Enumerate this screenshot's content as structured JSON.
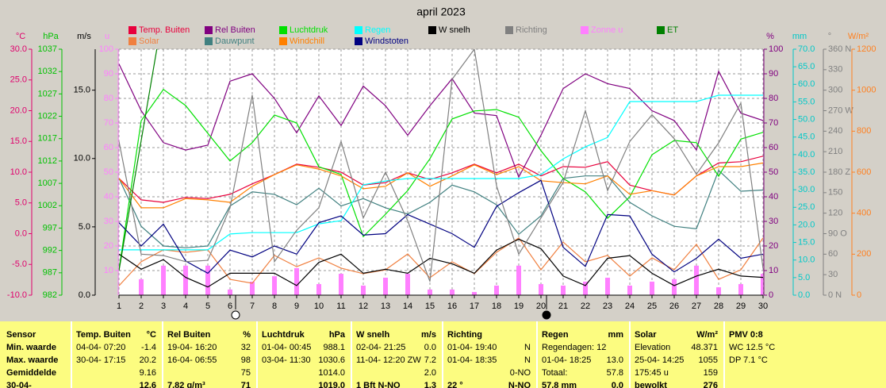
{
  "chart_data": {
    "type": "line",
    "title": "april 2023",
    "x": [
      1,
      2,
      3,
      4,
      5,
      6,
      7,
      8,
      9,
      10,
      11,
      12,
      13,
      14,
      15,
      16,
      17,
      18,
      19,
      20,
      21,
      22,
      23,
      24,
      25,
      26,
      27,
      28,
      29,
      30
    ],
    "xlim": [
      1,
      30
    ],
    "xticks": [
      1,
      2,
      3,
      4,
      5,
      6,
      7,
      8,
      9,
      10,
      11,
      12,
      13,
      14,
      15,
      16,
      17,
      18,
      19,
      20,
      21,
      22,
      23,
      24,
      25,
      26,
      27,
      28,
      29,
      30
    ],
    "xgrid": true,
    "axes": [
      {
        "unit": "°C",
        "color": "#e0006c",
        "lim": [
          -10,
          30
        ],
        "ticks": [
          {
            "value": -10,
            "label": "-10.0"
          },
          {
            "value": -5,
            "label": "-5.0"
          },
          {
            "value": 0,
            "label": "0.0"
          },
          {
            "value": 5,
            "label": "5.0"
          },
          {
            "value": 10,
            "label": "10.0"
          },
          {
            "value": 15,
            "label": "15.0"
          },
          {
            "value": 20,
            "label": "20.0"
          },
          {
            "value": 25,
            "label": "25.0"
          },
          {
            "value": 30,
            "label": "30.0"
          }
        ]
      },
      {
        "unit": "hPa",
        "color": "#00c000",
        "lim": [
          982,
          1037
        ],
        "ticks": [
          982,
          987,
          992,
          997,
          1002,
          1007,
          1012,
          1017,
          1022,
          1027,
          1032,
          1037
        ]
      },
      {
        "unit": "m/s",
        "color": "#000000",
        "lim": [
          0,
          18
        ],
        "ticks": [
          {
            "value": 0,
            "label": "0.0"
          },
          {
            "value": 5,
            "label": "5.0"
          },
          {
            "value": 10,
            "label": "10.0"
          },
          {
            "value": 15,
            "label": "15.0"
          }
        ]
      },
      {
        "unit": "u",
        "color": "#ff80ff",
        "lim": [
          0,
          100
        ],
        "ticks": [
          10,
          20,
          30,
          40,
          50,
          60,
          70,
          80,
          90,
          100
        ]
      },
      {
        "unit": "%",
        "color": "#800080",
        "lim": [
          0,
          100
        ],
        "ticks": [
          0,
          10,
          20,
          30,
          40,
          50,
          60,
          70,
          80,
          90,
          100
        ],
        "grid": true
      },
      {
        "unit": "mm",
        "color": "#00c8c8",
        "lim": [
          0,
          70
        ],
        "ticks": [
          {
            "value": 0,
            "label": "0.0"
          },
          {
            "value": 5,
            "label": "5.0"
          },
          {
            "value": 10,
            "label": "10.0"
          },
          {
            "value": 15,
            "label": "15.0"
          },
          {
            "value": 20,
            "label": "20.0"
          },
          {
            "value": 25,
            "label": "25.0"
          },
          {
            "value": 30,
            "label": "30.0"
          },
          {
            "value": 35,
            "label": "35.0"
          },
          {
            "value": 40,
            "label": "40.0"
          },
          {
            "value": 45,
            "label": "45.0"
          },
          {
            "value": 50,
            "label": "50.0"
          },
          {
            "value": 55,
            "label": "55.0"
          },
          {
            "value": 60,
            "label": "60.0"
          },
          {
            "value": 65,
            "label": "65.0"
          },
          {
            "value": 70,
            "label": "70.0"
          }
        ]
      },
      {
        "unit": "°",
        "color": "#808080",
        "lim": [
          0,
          360
        ],
        "ticks": [
          {
            "value": 0,
            "label": "0 N"
          },
          30,
          60,
          {
            "value": 90,
            "label": "90 O"
          },
          120,
          150,
          {
            "value": 180,
            "label": "180 Z"
          },
          210,
          240,
          {
            "value": 270,
            "label": "270 W"
          },
          300,
          330,
          {
            "value": 360,
            "label": "360 N"
          }
        ]
      },
      {
        "unit": "W/m²",
        "color": "#ff8020",
        "lim": [
          0,
          1200
        ],
        "ticks": [
          0,
          200,
          400,
          600,
          800,
          1000,
          1200
        ]
      }
    ],
    "series": [
      {
        "name": "Temp. Buiten",
        "color": "#e8003c",
        "axis": "°C",
        "type": "line",
        "values": [
          9.0,
          5.5,
          5.1,
          5.9,
          5.7,
          6.4,
          8.1,
          9.6,
          11.3,
          10.8,
          10.0,
          7.9,
          8.3,
          9.9,
          8.8,
          9.9,
          11.3,
          9.9,
          11.3,
          9.4,
          10.9,
          10.8,
          11.7,
          7.9,
          7.0,
          6.3,
          9.4,
          11.5,
          11.7,
          12.6
        ]
      },
      {
        "name": "Solar",
        "color": "#f08040",
        "axis": "W/m²",
        "type": "line",
        "values": [
          46,
          163,
          221,
          209,
          221,
          77,
          58,
          194,
          139,
          182,
          132,
          105,
          124,
          201,
          85,
          163,
          105,
          209,
          279,
          124,
          259,
          163,
          194,
          93,
          182,
          124,
          248,
          77,
          124,
          279
        ]
      },
      {
        "name": "Rel Buiten",
        "color": "#800080",
        "axis": "%",
        "type": "line",
        "values": [
          94,
          75,
          62,
          59,
          61,
          87,
          90,
          80,
          66,
          81,
          69,
          85,
          77,
          65,
          77,
          88,
          74,
          73,
          48,
          65,
          84,
          90,
          86,
          84,
          75,
          71,
          59,
          91,
          74,
          71
        ]
      },
      {
        "name": "Dauwpunt",
        "color": "#408080",
        "axis": "°C",
        "type": "line",
        "values": [
          9.0,
          1.2,
          -2.0,
          -2.3,
          -2.0,
          4.5,
          6.8,
          6.4,
          4.7,
          7.4,
          4.5,
          5.7,
          4.2,
          3.2,
          5.1,
          7.9,
          6.8,
          4.7,
          -0.1,
          2.9,
          9.0,
          9.4,
          9.4,
          5.1,
          2.9,
          1.2,
          0.8,
          10.3,
          6.9,
          7.1
        ]
      },
      {
        "name": "Luchtdruk",
        "color": "#00e000",
        "axis": "hPa",
        "type": "line",
        "values": [
          987.7,
          1021.0,
          1028.0,
          1024.4,
          1018.2,
          1012.0,
          1016.1,
          1022.3,
          1020.5,
          1010.7,
          1009.0,
          995.1,
          1000.1,
          1005.4,
          1012.5,
          1021.4,
          1023.2,
          1023.5,
          1021.8,
          1014.3,
          1008.1,
          1005.1,
          999.2,
          1004.0,
          1013.4,
          1016.6,
          1016.1,
          1008.6,
          1016.9,
          1018.4
        ]
      },
      {
        "name": "Windchill",
        "color": "#ff8000",
        "axis": "°C",
        "type": "line",
        "values": [
          9.0,
          4.2,
          4.2,
          5.7,
          5.5,
          5.1,
          7.7,
          9.6,
          11.2,
          10.5,
          9.4,
          7.3,
          7.7,
          9.9,
          7.7,
          9.4,
          11.2,
          9.6,
          10.9,
          8.6,
          8.3,
          8.1,
          9.4,
          6.4,
          7.0,
          6.3,
          9.4,
          10.9,
          10.9,
          11.5
        ]
      },
      {
        "name": "Regen",
        "color": "#00ffff",
        "axis": "mm",
        "type": "line",
        "values": [
          12.9,
          12.9,
          12.9,
          12.9,
          12.9,
          17.4,
          17.8,
          17.8,
          17.8,
          20.3,
          21.2,
          31.4,
          32.5,
          33.2,
          33.2,
          33.2,
          33.2,
          33.2,
          33.2,
          34.3,
          38.8,
          42.2,
          44.9,
          55.1,
          55.1,
          55.1,
          55.1,
          56.9,
          56.9,
          56.9
        ]
      },
      {
        "name": "Windstoten",
        "color": "#000080",
        "axis": "m/s",
        "type": "line",
        "values": [
          5.3,
          3.6,
          5.2,
          2.5,
          1.6,
          3.3,
          2.8,
          3.6,
          3.0,
          5.3,
          5.8,
          4.4,
          4.5,
          5.9,
          5.2,
          4.5,
          3.5,
          6.5,
          7.5,
          8.4,
          3.5,
          2.1,
          5.9,
          5.8,
          3.0,
          1.7,
          2.7,
          4.1,
          2.7,
          3.0
        ]
      },
      {
        "name": "W snelh",
        "color": "#000000",
        "axis": "m/s",
        "type": "line",
        "values": [
          3.0,
          1.9,
          2.6,
          1.3,
          0.6,
          1.6,
          1.6,
          1.6,
          0.7,
          2.4,
          3.0,
          1.6,
          1.9,
          1.6,
          2.7,
          2.3,
          1.6,
          3.3,
          4.1,
          3.4,
          1.4,
          0.7,
          2.7,
          2.9,
          1.6,
          0.7,
          1.4,
          1.9,
          1.4,
          1.3
        ]
      },
      {
        "name": "Richting",
        "color": "#808080",
        "axis": "°",
        "type": "line",
        "values": [
          225,
          60,
          58,
          49,
          51,
          128,
          293,
          49,
          95,
          128,
          225,
          113,
          180,
          109,
          20,
          316,
          360,
          160,
          60,
          113,
          165,
          270,
          153,
          225,
          264,
          229,
          177,
          223,
          281,
          39
        ]
      },
      {
        "name": "Zonne u",
        "color": "#ff80ff",
        "axis": "u",
        "type": "bar",
        "values": [
          0,
          6.5,
          12,
          12,
          12,
          2.3,
          5.5,
          7.7,
          11,
          4.5,
          8.7,
          3.9,
          7.1,
          8.7,
          2.3,
          2.3,
          1.3,
          3.9,
          12,
          4.5,
          3.9,
          5.5,
          7.1,
          3.9,
          5.5,
          6.5,
          12,
          3.2,
          4.5,
          8.7
        ]
      },
      {
        "name": "ET",
        "color": "#008000",
        "axis": "mm",
        "type": "line",
        "values": [
          7,
          44,
          81,
          null,
          null,
          null,
          null,
          null,
          null,
          null,
          null,
          null,
          null,
          null,
          null,
          null,
          null,
          null,
          null,
          null,
          null,
          null,
          null,
          null,
          null,
          null,
          null,
          null,
          null,
          null
        ]
      }
    ]
  },
  "table": {
    "columns": [
      {
        "title": "Sensor",
        "rows": [
          {
            "l": "Min. waarde"
          },
          {
            "l": "Max. waarde"
          },
          {
            "l": "Gemiddelde"
          },
          {
            "l": "30-04-"
          }
        ]
      },
      {
        "title": "Temp. Buiten",
        "unit": "°C",
        "rows": [
          {
            "l": "04-04- 07:20",
            "r": "-1.4"
          },
          {
            "l": "30-04- 17:15",
            "r": "20.2"
          },
          {
            "r": "9.16"
          },
          {
            "r": "12.6"
          }
        ]
      },
      {
        "title": "Rel Buiten",
        "unit": "%",
        "rows": [
          {
            "l": "19-04- 16:20",
            "r": "32"
          },
          {
            "l": "16-04- 06:55",
            "r": "98"
          },
          {
            "r": "75"
          },
          {
            "l": "7.82 g/m³",
            "r": "71"
          }
        ]
      },
      {
        "title": "Luchtdruk",
        "unit": "hPa",
        "rows": [
          {
            "l": "01-04- 00:45",
            "r": "988.1"
          },
          {
            "l": "03-04- 11:30",
            "r": "1030.6"
          },
          {
            "r": "1014.0"
          },
          {
            "r": "1019.0"
          }
        ]
      },
      {
        "title": "W snelh",
        "unit": "m/s",
        "rows": [
          {
            "l": "02-04- 21:25",
            "r": "0.0"
          },
          {
            "l": "11-04- 12:20 ZW",
            "r": "7.2"
          },
          {
            "r": "2.0"
          },
          {
            "l": "1 Bft N-NO",
            "r": "1.3"
          }
        ]
      },
      {
        "title": "Richting",
        "rows": [
          {
            "l": "01-04- 19:40",
            "r": "N"
          },
          {
            "l": "01-04- 18:35",
            "r": "N"
          },
          {
            "r": "0-NO"
          },
          {
            "l": "22 °",
            "r": "N-NO"
          }
        ]
      },
      {
        "title": "Regen",
        "unit": "mm",
        "rows": [
          {
            "l": "Regendagen: 12"
          },
          {
            "l": "01-04- 18:25",
            "r": "13.0"
          },
          {
            "l": "Totaal:",
            "r": "57.8"
          },
          {
            "l": "57.8 mm",
            "r": "0.0"
          }
        ]
      },
      {
        "title": "Solar",
        "unit": "W/m²",
        "rows": [
          {
            "l": "Elevation",
            "r": "48.371"
          },
          {
            "l": "25-04- 14:25",
            "r": "1055"
          },
          {
            "l": "175:45 u",
            "r": "159"
          },
          {
            "l": "bewolkt",
            "r": "276"
          }
        ]
      },
      {
        "title": "PMV 0:8",
        "rows": [
          {
            "l": "WC 12.5 °C"
          },
          {
            "l": "DP 7.1 °C"
          }
        ]
      }
    ]
  }
}
